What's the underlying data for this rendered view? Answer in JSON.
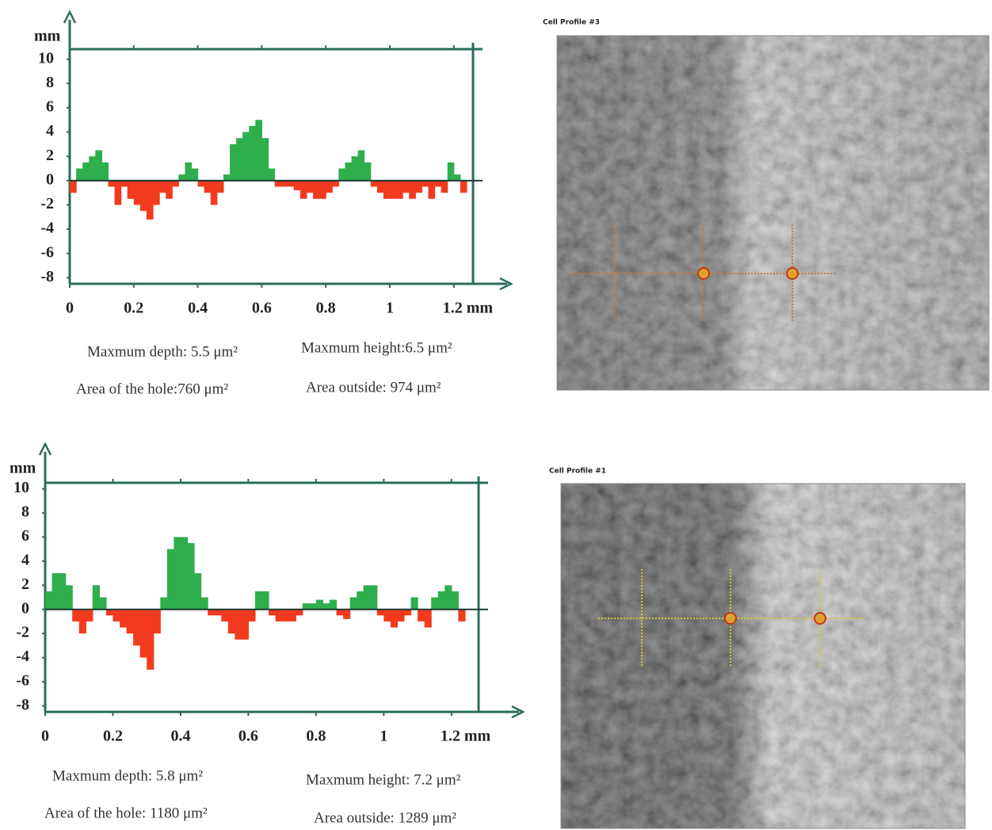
{
  "chart_data": [
    {
      "type": "profile",
      "y_label": "mm",
      "x": [
        0,
        0.02,
        0.04,
        0.06,
        0.08,
        0.1,
        0.12,
        0.14,
        0.16,
        0.18,
        0.2,
        0.22,
        0.24,
        0.26,
        0.28,
        0.3,
        0.32,
        0.34,
        0.36,
        0.38,
        0.4,
        0.42,
        0.44,
        0.46,
        0.48,
        0.5,
        0.52,
        0.54,
        0.56,
        0.58,
        0.6,
        0.62,
        0.64,
        0.66,
        0.68,
        0.7,
        0.72,
        0.74,
        0.76,
        0.78,
        0.8,
        0.82,
        0.84,
        0.86,
        0.88,
        0.9,
        0.92,
        0.94,
        0.96,
        0.98,
        1.0,
        1.02,
        1.04,
        1.06,
        1.08,
        1.1,
        1.12,
        1.14,
        1.16,
        1.18,
        1.2,
        1.22
      ],
      "values": [
        -1,
        1,
        1.5,
        2,
        2.5,
        1.5,
        -0.5,
        -2,
        -0.5,
        -1.5,
        -2,
        -2.5,
        -3.2,
        -2,
        -1,
        -1.5,
        -0.5,
        0.5,
        1.5,
        1,
        -0.5,
        -1,
        -2,
        -1,
        0.5,
        3,
        3.5,
        4,
        4.5,
        5,
        3.5,
        1,
        -0.5,
        -0.5,
        -0.5,
        -0.8,
        -1.5,
        -1,
        -1.5,
        -1.5,
        -1,
        -0.5,
        1,
        1.5,
        2,
        2.5,
        1.5,
        -0.5,
        -1,
        -1.5,
        -1.5,
        -1.5,
        -1,
        -1.5,
        -1,
        -0.5,
        -1.5,
        -0.5,
        -1,
        1.5,
        0.5,
        -1
      ],
      "positive_color": "#2fae4e",
      "negative_color": "#f23b1e",
      "xlim": [
        0,
        1.26
      ],
      "ylim": [
        -8.5,
        10.5
      ],
      "xticks": [
        0,
        0.2,
        0.4,
        0.6,
        0.8,
        1,
        {
          "value": 1.2,
          "label": "1.2 mm"
        }
      ],
      "yticks": [
        10,
        8,
        6,
        4,
        2,
        0,
        -2,
        -4,
        -6,
        -8
      ],
      "annotations": [
        "Maxmum  depth: 5.5 μm²",
        "Maxmum height:6.5 μm²",
        "Area of the hole:760  μm²",
        "Area outside: 974  μm²"
      ]
    },
    {
      "type": "profile",
      "y_label": "mm",
      "x": [
        0,
        0.02,
        0.04,
        0.06,
        0.08,
        0.1,
        0.12,
        0.14,
        0.16,
        0.18,
        0.2,
        0.22,
        0.24,
        0.26,
        0.28,
        0.3,
        0.32,
        0.34,
        0.36,
        0.38,
        0.4,
        0.42,
        0.44,
        0.46,
        0.48,
        0.5,
        0.52,
        0.54,
        0.56,
        0.58,
        0.6,
        0.62,
        0.64,
        0.66,
        0.68,
        0.7,
        0.72,
        0.74,
        0.76,
        0.78,
        0.8,
        0.82,
        0.84,
        0.86,
        0.88,
        0.9,
        0.92,
        0.94,
        0.96,
        0.98,
        1.0,
        1.02,
        1.04,
        1.06,
        1.08,
        1.1,
        1.12,
        1.14,
        1.16,
        1.18,
        1.2,
        1.22
      ],
      "values": [
        1.5,
        3,
        3,
        2,
        -1,
        -2,
        -1,
        2,
        1,
        -0.5,
        -1,
        -1.5,
        -2,
        -3,
        -4,
        -5,
        -2,
        1,
        5,
        6,
        6,
        5.5,
        3,
        1,
        -0.5,
        -0.5,
        -1,
        -2,
        -2.5,
        -2.5,
        -1,
        1.5,
        1.5,
        -0.5,
        -1,
        -1,
        -1,
        -0.5,
        0.5,
        0.5,
        0.8,
        0.5,
        0.8,
        -0.5,
        -0.8,
        1,
        1.5,
        2,
        2,
        -0.5,
        -1,
        -1.5,
        -1,
        -0.5,
        1,
        -1,
        -1.5,
        1,
        1.5,
        2,
        1.5,
        -1
      ],
      "positive_color": "#2fae4e",
      "negative_color": "#f23b1e",
      "xlim": [
        0,
        1.28
      ],
      "ylim": [
        -8.5,
        10.5
      ],
      "xticks": [
        0,
        0.2,
        0.4,
        0.6,
        0.8,
        1,
        {
          "value": 1.2,
          "label": "1.2 mm"
        }
      ],
      "yticks": [
        10,
        8,
        6,
        4,
        2,
        0,
        -2,
        -4,
        -6,
        -8
      ],
      "annotations": [
        "Maxmum  depth: 5.8 μm²",
        "Maxmum height:  7.2 μm²",
        "Area of the hole: 1180 μm²",
        "Area outside:  1289 μm²"
      ]
    }
  ],
  "images": [
    {
      "title": "Cell Profile #3"
    },
    {
      "title": "Cell Profile #1"
    }
  ]
}
